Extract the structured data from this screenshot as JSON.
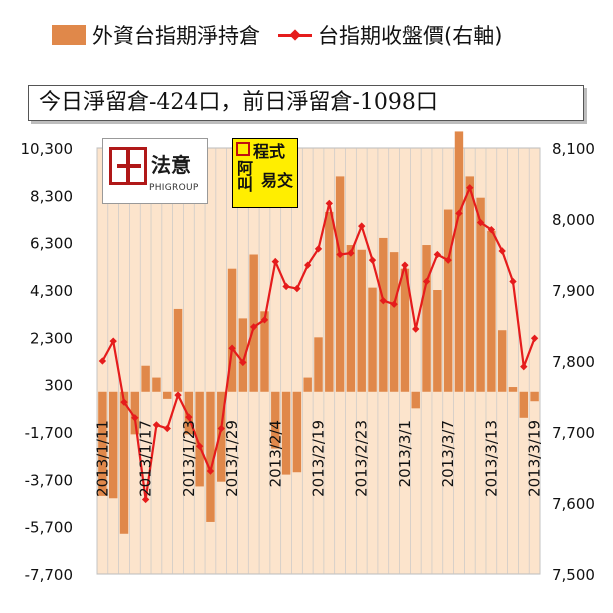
{
  "legend": {
    "bar_label": "外資台指期淨持倉",
    "line_label": "台指期收盤價(右軸)"
  },
  "info": {
    "text": "今日淨留倉-424口，前日淨留倉-1098口"
  },
  "logos": {
    "phigroup_cn": "法意",
    "phigroup_en": "PHIGROUP",
    "cheng_shi": "程式",
    "a_jiao": "阿叫",
    "yi_jiao": "易交"
  },
  "colors": {
    "bar": "#e0884a",
    "line": "#e51c1c",
    "plot_bg": "#fce4cc",
    "grid": "#c8c8c8"
  },
  "chart_data": {
    "type": "bar",
    "left_axis": {
      "min": -7700,
      "max": 10300,
      "ticks": [
        -7700,
        -5700,
        -3700,
        -1700,
        300,
        2300,
        4300,
        6300,
        8300,
        10300
      ]
    },
    "right_axis": {
      "min": 7500,
      "max": 8100,
      "ticks": [
        7500,
        7600,
        7700,
        7800,
        7900,
        8000,
        8100
      ]
    },
    "x_tick_labels": [
      "2013/1/11",
      "2013/1/17",
      "2013/1/23",
      "2013/1/29",
      "2013/2/4",
      "2013/2/19",
      "2013/2/23",
      "2013/3/1",
      "2013/3/7",
      "2013/3/13",
      "2013/3/19"
    ],
    "x_tick_index": [
      0,
      4,
      8,
      12,
      16,
      20,
      24,
      28,
      32,
      36,
      40
    ],
    "series": [
      {
        "name": "外資台指期淨持倉",
        "kind": "bar",
        "axis": "left",
        "values": [
          -4400,
          -4500,
          -6000,
          -1800,
          1100,
          600,
          -300,
          3500,
          -1800,
          -4000,
          -5500,
          -3800,
          5200,
          3100,
          5800,
          3400,
          -2400,
          -3500,
          -3400,
          600,
          2300,
          7600,
          9100,
          6200,
          6000,
          4400,
          6500,
          5900,
          5200,
          -700,
          6200,
          4300,
          7700,
          11000,
          9100,
          8200,
          6800,
          2600,
          200,
          -1100,
          -400
        ]
      },
      {
        "name": "台指期收盤價(右軸)",
        "kind": "line",
        "axis": "right",
        "values": [
          7800,
          7828,
          7742,
          7720,
          7605,
          7710,
          7705,
          7752,
          7721,
          7680,
          7645,
          7705,
          7818,
          7798,
          7848,
          7858,
          7940,
          7905,
          7902,
          7935,
          7958,
          8022,
          7950,
          7952,
          7990,
          7942,
          7885,
          7880,
          7935,
          7845,
          7912,
          7950,
          7942,
          8008,
          8044,
          7995,
          7985,
          7955,
          7912,
          7792,
          7832
        ]
      }
    ]
  }
}
